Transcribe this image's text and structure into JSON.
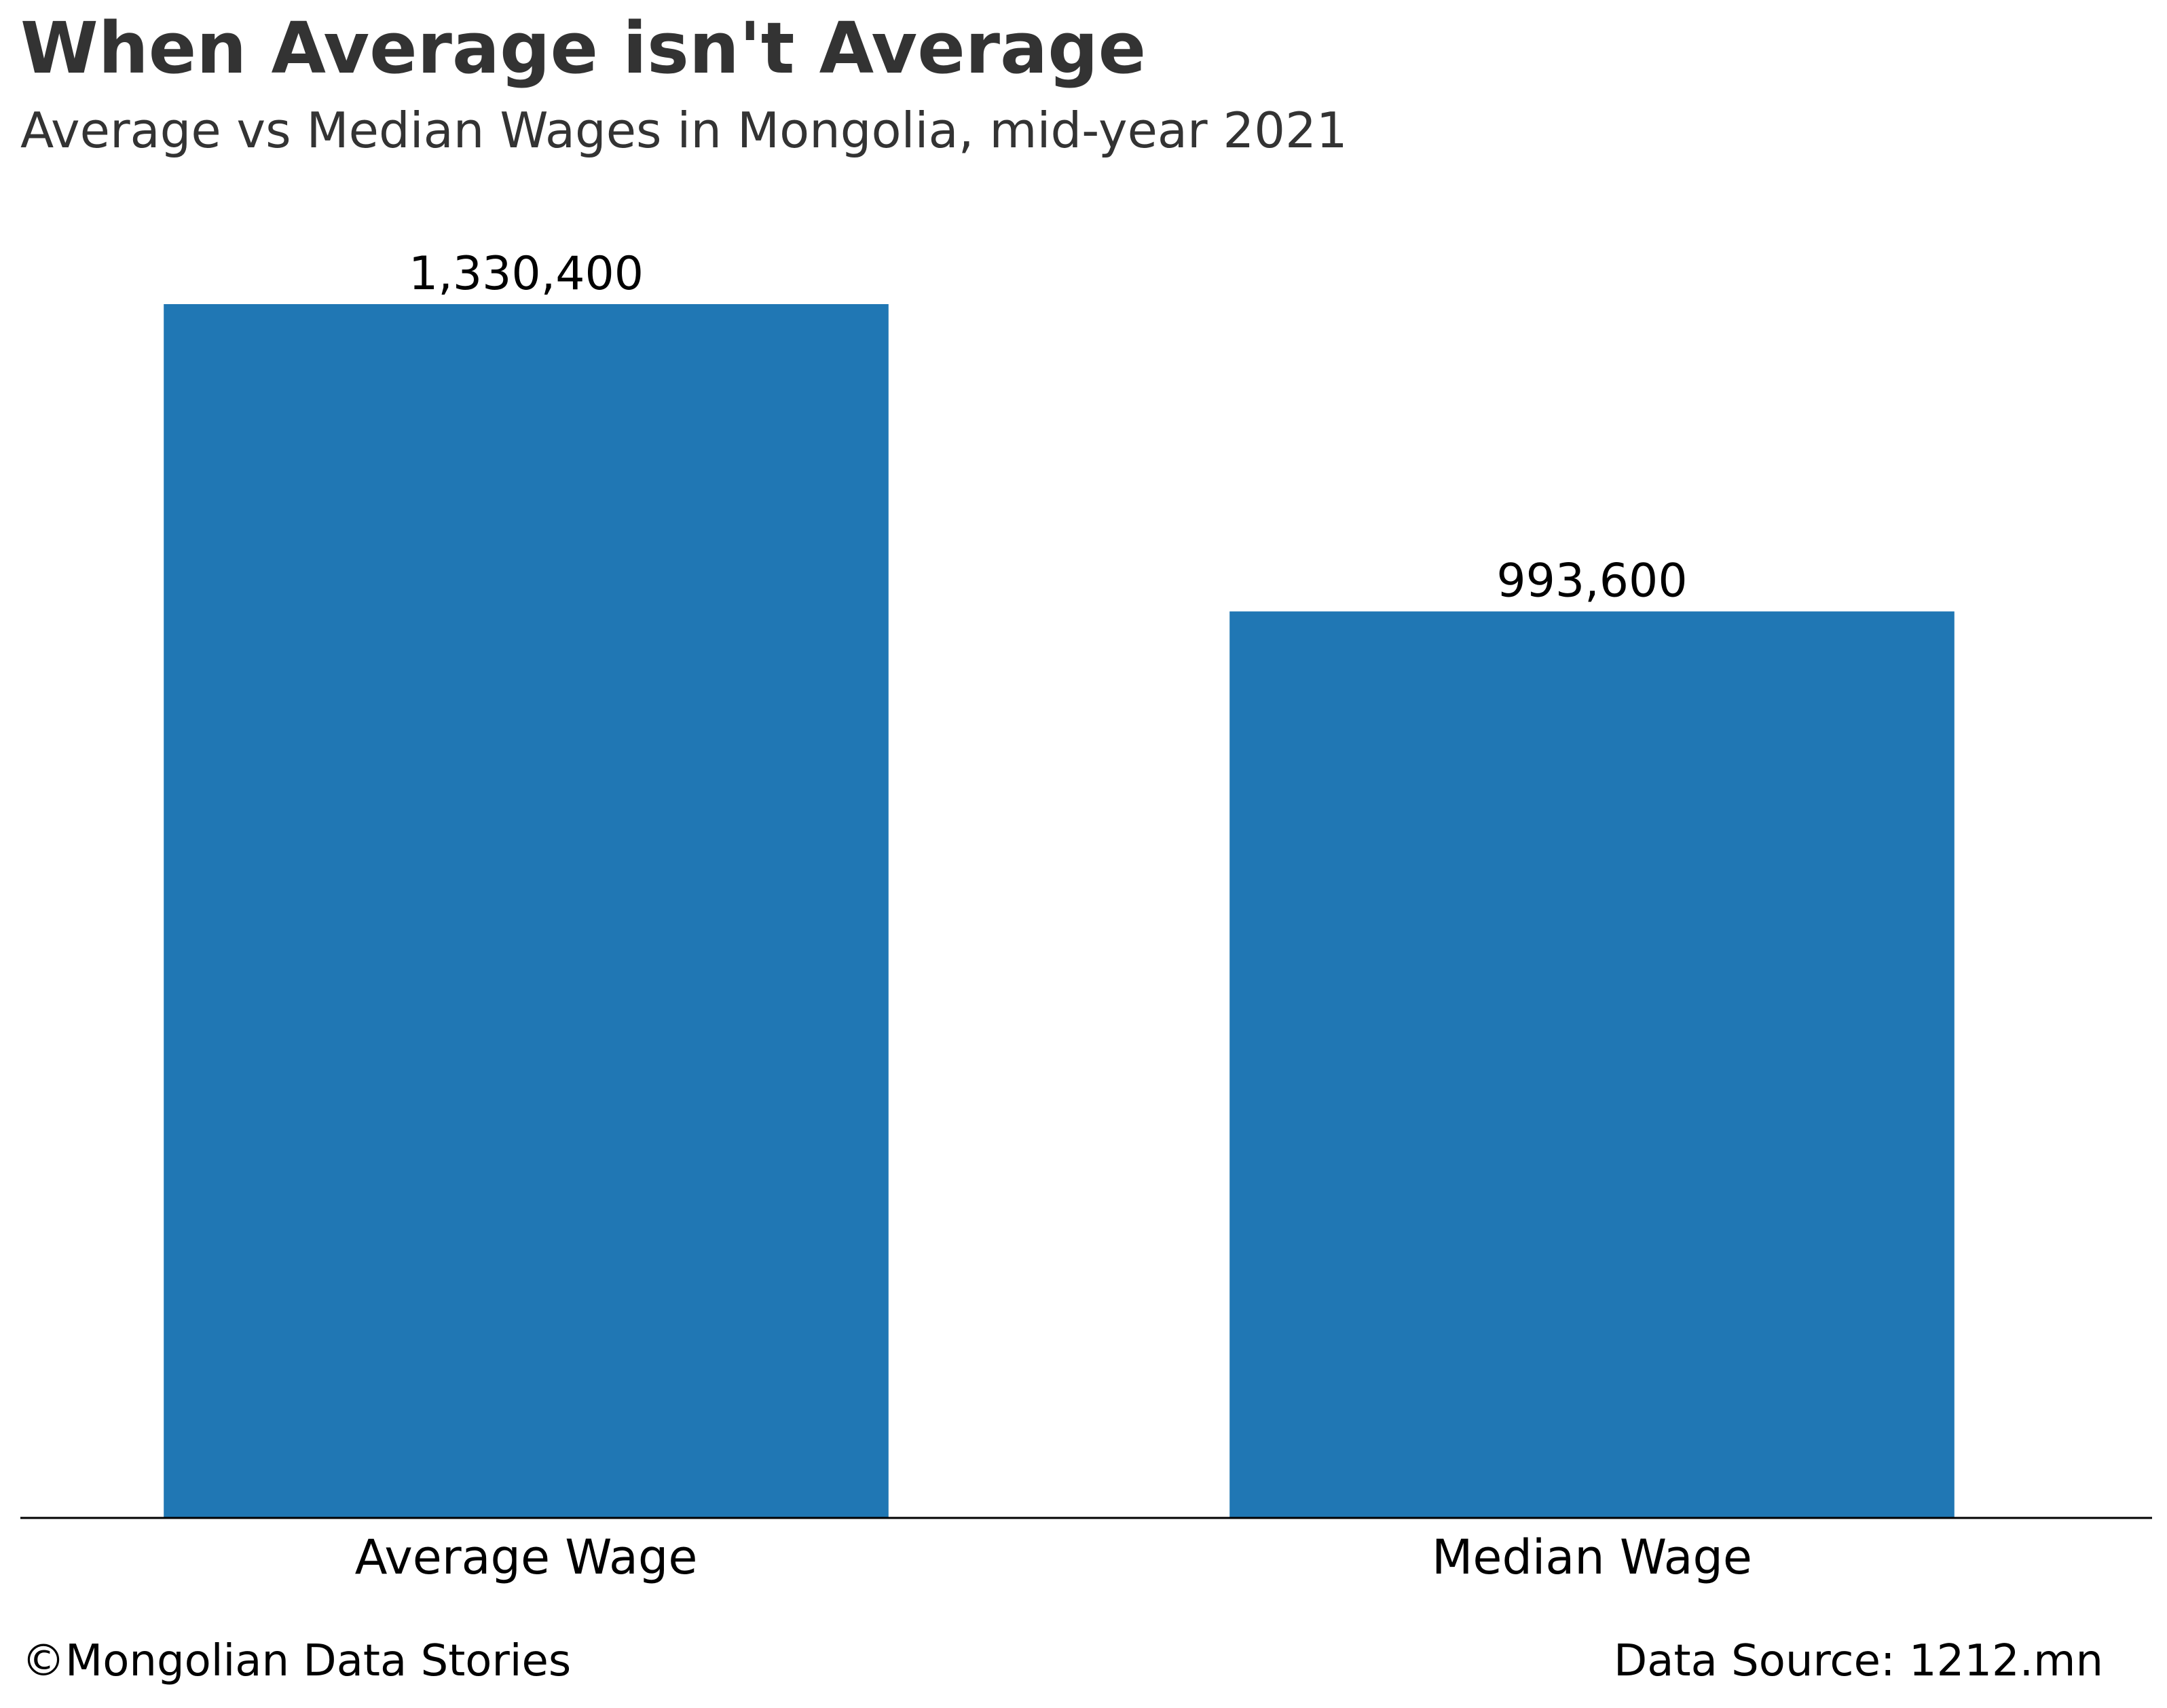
{
  "title": "When Average isn't Average",
  "subtitle": "Average vs Median Wages in Mongolia, mid-year 2021",
  "footer": {
    "credit": "©Mongolian Data Stories",
    "source": "Data Source: 1212.mn"
  },
  "chart_data": {
    "type": "bar",
    "title": "When Average isn't Average",
    "subtitle": "Average vs Median Wages in Mongolia, mid-year 2021",
    "categories": [
      "Average Wage",
      "Median Wage"
    ],
    "values": [
      1330400,
      993600
    ],
    "data_labels": [
      "1,330,400",
      "993,600"
    ],
    "xlabel": "",
    "ylabel": "",
    "ylim": [
      0,
      1400000
    ],
    "grid": false,
    "y_axis_visible": false,
    "bar_color": "#2077b4"
  }
}
